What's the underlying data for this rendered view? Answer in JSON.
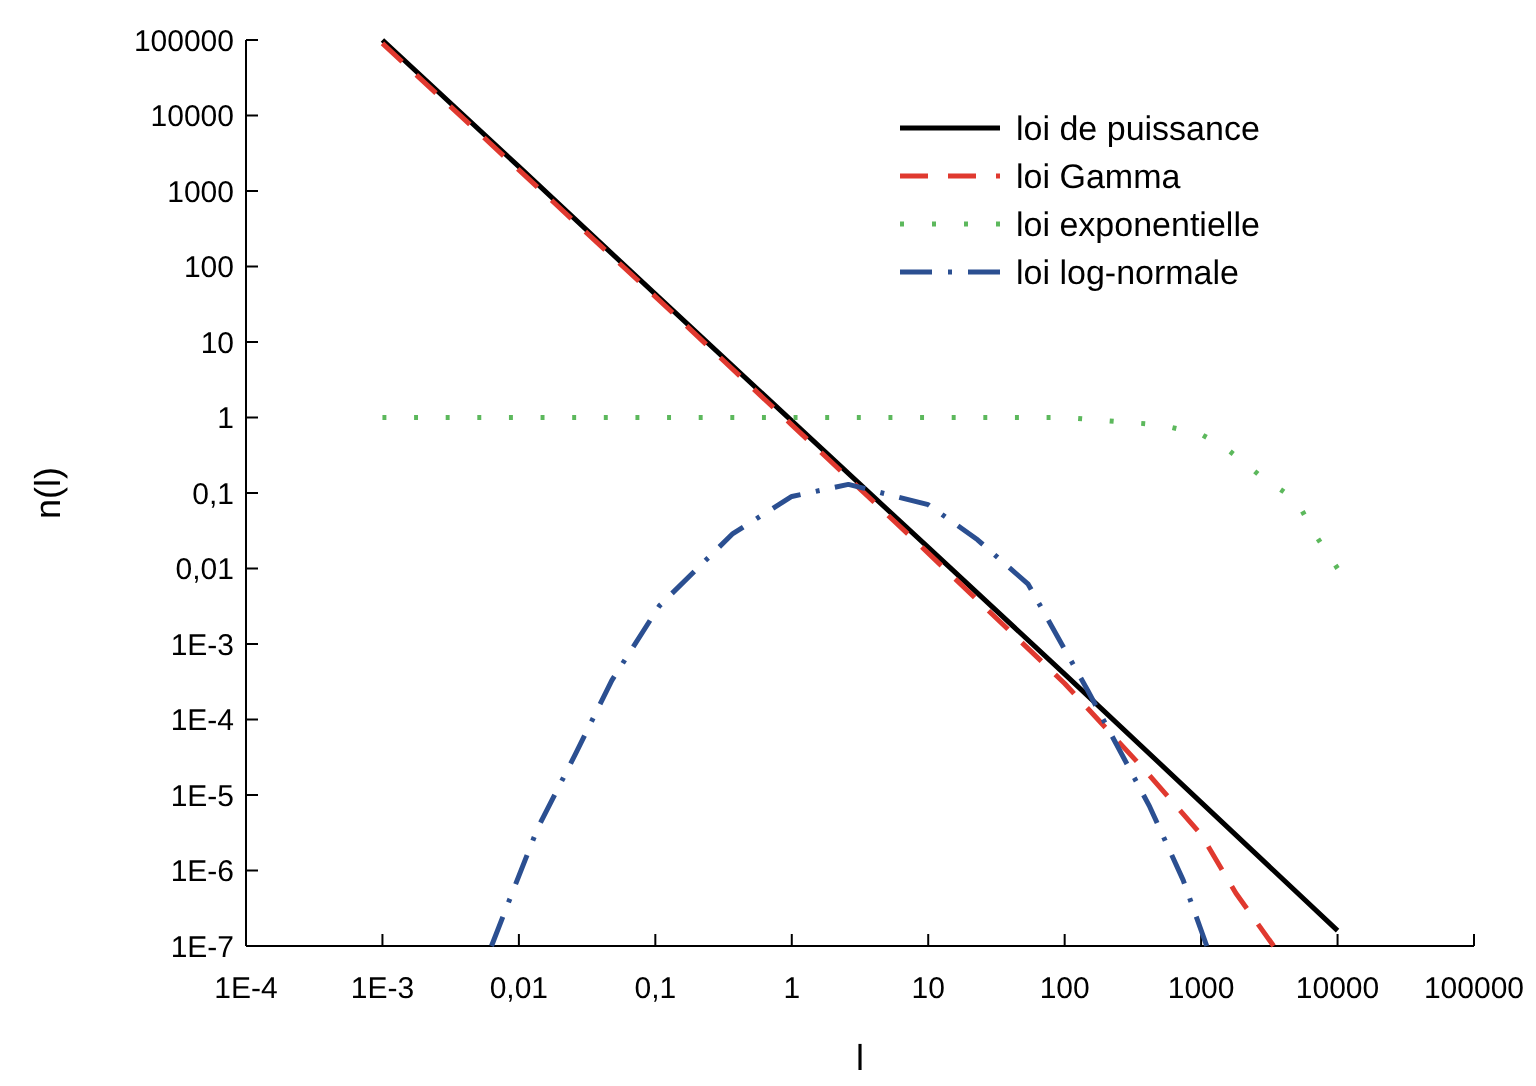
{
  "chart_data": {
    "type": "line",
    "xlabel": "l",
    "ylabel": "n(l)",
    "log": "xy",
    "legend": "top right",
    "grid": false,
    "marker": "none",
    "xlim": [
      0.0001,
      100000
    ],
    "ylim": [
      1e-07,
      100000
    ],
    "xticks": [
      {
        "value": 0.0001,
        "label": "1E-4"
      },
      {
        "value": 0.001,
        "label": "1E-3"
      },
      {
        "value": 0.01,
        "label": "0,01"
      },
      {
        "value": 0.1,
        "label": "0,1"
      },
      1,
      10,
      100,
      1000,
      10000,
      100000
    ],
    "yticks": [
      {
        "value": 1e-07,
        "label": "1E-7"
      },
      {
        "value": 1e-06,
        "label": "1E-6"
      },
      {
        "value": 1e-05,
        "label": "1E-5"
      },
      {
        "value": 0.0001,
        "label": "1E-4"
      },
      {
        "value": 0.001,
        "label": "1E-3"
      },
      {
        "value": 0.01,
        "label": "0,01"
      },
      {
        "value": 0.1,
        "label": "0,1"
      },
      1,
      10,
      100,
      1000,
      10000,
      100000
    ],
    "series": [
      {
        "name": "loi de puissance",
        "color": "#000000",
        "line_style": "solid",
        "x": [
          0.001,
          0.01,
          0.1,
          1,
          10,
          100,
          1000,
          10000
        ],
        "values": [
          100000,
          2100,
          43,
          0.9,
          0.019,
          0.0004,
          8e-06,
          1.6e-07
        ]
      },
      {
        "name": "loi Gamma",
        "color": "#e0392f",
        "line_style": "dashed",
        "x": [
          0.001,
          0.01,
          0.1,
          1,
          10,
          100,
          400,
          1000,
          1800,
          3400
        ],
        "values": [
          90000,
          1900,
          40,
          0.8,
          0.016,
          0.0003,
          2e-05,
          3e-06,
          5e-07,
          1e-07
        ]
      },
      {
        "name": "loi exponentielle",
        "color": "#5cb85c",
        "line_style": "dotted",
        "x": [
          0.001,
          0.01,
          0.1,
          1,
          10,
          100,
          500,
          1000,
          1500,
          2700,
          5000,
          6700,
          10000
        ],
        "values": [
          1,
          1,
          1,
          1,
          1,
          1,
          0.8,
          0.6,
          0.4,
          0.17,
          0.08,
          0.03,
          0.01
        ]
      },
      {
        "name": "loi log-normale",
        "color": "#2b4f91",
        "line_style": "dashdot",
        "x": [
          0.0063,
          0.0083,
          0.0137,
          0.026,
          0.048,
          0.107,
          0.37,
          1,
          2.6,
          10,
          23,
          54,
          148,
          420,
          740,
          1100
        ],
        "values": [
          1e-07,
          3.6e-07,
          3.6e-06,
          3.5e-05,
          0.00033,
          0.0032,
          0.029,
          0.09,
          0.13,
          0.07,
          0.024,
          0.0062,
          0.00024,
          7e-06,
          7.4e-07,
          1e-07
        ]
      }
    ]
  }
}
